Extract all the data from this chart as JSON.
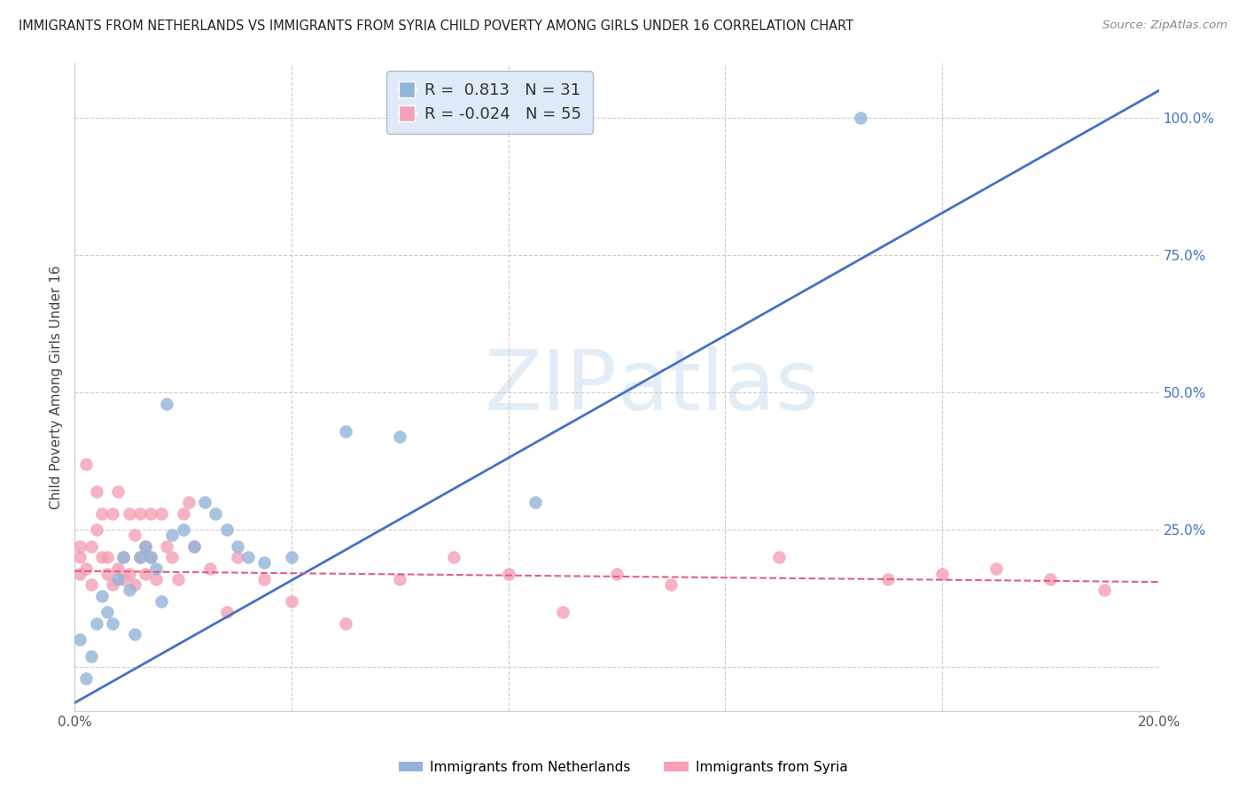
{
  "title": "IMMIGRANTS FROM NETHERLANDS VS IMMIGRANTS FROM SYRIA CHILD POVERTY AMONG GIRLS UNDER 16 CORRELATION CHART",
  "source": "Source: ZipAtlas.com",
  "ylabel": "Child Poverty Among Girls Under 16",
  "watermark_zip": "ZIP",
  "watermark_atlas": "atlas",
  "xlim": [
    0.0,
    0.2
  ],
  "ylim": [
    -0.08,
    1.1
  ],
  "right_ytick_vals": [
    0.25,
    0.5,
    0.75,
    1.0
  ],
  "right_yticklabels": [
    "25.0%",
    "50.0%",
    "75.0%",
    "100.0%"
  ],
  "xtick_vals": [
    0.0,
    0.04,
    0.08,
    0.12,
    0.16,
    0.2
  ],
  "xticklabels": [
    "0.0%",
    "",
    "",
    "",
    "",
    "20.0%"
  ],
  "netherlands_R": 0.813,
  "netherlands_N": 31,
  "syria_R": -0.024,
  "syria_N": 55,
  "netherlands_color": "#92b4d8",
  "syria_color": "#f4a0b5",
  "netherlands_line_color": "#4472c4",
  "syria_line_color": "#e06080",
  "legend_facecolor": "#deeaf7",
  "legend_edgecolor": "#aabbd0",
  "nl_line_x0": 0.0,
  "nl_line_y0": -0.065,
  "nl_line_x1": 0.2,
  "nl_line_y1": 1.05,
  "sy_line_x0": 0.0,
  "sy_line_y0": 0.175,
  "sy_line_x1": 0.2,
  "sy_line_y1": 0.155,
  "netherlands_x": [
    0.001,
    0.002,
    0.003,
    0.004,
    0.005,
    0.006,
    0.007,
    0.008,
    0.009,
    0.01,
    0.011,
    0.012,
    0.013,
    0.014,
    0.015,
    0.016,
    0.018,
    0.02,
    0.022,
    0.024,
    0.026,
    0.028,
    0.03,
    0.032,
    0.035,
    0.06,
    0.085,
    0.145,
    0.05,
    0.04,
    0.017
  ],
  "netherlands_y": [
    0.05,
    -0.02,
    0.02,
    0.08,
    0.13,
    0.1,
    0.08,
    0.16,
    0.2,
    0.14,
    0.06,
    0.2,
    0.22,
    0.2,
    0.18,
    0.12,
    0.24,
    0.25,
    0.22,
    0.3,
    0.28,
    0.25,
    0.22,
    0.2,
    0.19,
    0.42,
    0.3,
    1.0,
    0.43,
    0.2,
    0.48
  ],
  "syria_x": [
    0.001,
    0.001,
    0.001,
    0.002,
    0.002,
    0.003,
    0.003,
    0.004,
    0.004,
    0.005,
    0.005,
    0.006,
    0.006,
    0.007,
    0.007,
    0.008,
    0.008,
    0.009,
    0.009,
    0.01,
    0.01,
    0.011,
    0.011,
    0.012,
    0.012,
    0.013,
    0.013,
    0.014,
    0.014,
    0.015,
    0.016,
    0.017,
    0.018,
    0.019,
    0.02,
    0.021,
    0.022,
    0.025,
    0.028,
    0.03,
    0.035,
    0.04,
    0.05,
    0.06,
    0.07,
    0.08,
    0.09,
    0.1,
    0.11,
    0.13,
    0.15,
    0.16,
    0.17,
    0.18,
    0.19
  ],
  "syria_y": [
    0.2,
    0.17,
    0.22,
    0.18,
    0.37,
    0.22,
    0.15,
    0.32,
    0.25,
    0.2,
    0.28,
    0.17,
    0.2,
    0.28,
    0.15,
    0.32,
    0.18,
    0.2,
    0.16,
    0.17,
    0.28,
    0.15,
    0.24,
    0.28,
    0.2,
    0.17,
    0.22,
    0.28,
    0.2,
    0.16,
    0.28,
    0.22,
    0.2,
    0.16,
    0.28,
    0.3,
    0.22,
    0.18,
    0.1,
    0.2,
    0.16,
    0.12,
    0.08,
    0.16,
    0.2,
    0.17,
    0.1,
    0.17,
    0.15,
    0.2,
    0.16,
    0.17,
    0.18,
    0.16,
    0.14
  ]
}
